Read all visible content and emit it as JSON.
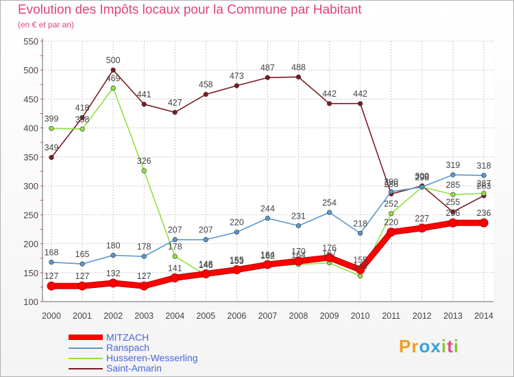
{
  "chart_data": {
    "type": "line",
    "title": "Evolution des Impôts locaux pour la Commune par Habitant",
    "subtitle": "(en € et par an)",
    "categories": [
      "2000",
      "2001",
      "2002",
      "2003",
      "2004",
      "2005",
      "2006",
      "2007",
      "2008",
      "2009",
      "2010",
      "2011",
      "2012",
      "2013",
      "2014"
    ],
    "ylim": [
      100,
      550
    ],
    "yticks": [
      100,
      150,
      200,
      250,
      300,
      350,
      400,
      450,
      500,
      550
    ],
    "grid": true,
    "legend_position": "bottom-left",
    "series": [
      {
        "name": "MITZACH",
        "color": "#ff0000",
        "values": [
          127,
          127,
          132,
          127,
          141,
          148,
          155,
          164,
          170,
          176,
          155,
          220,
          227,
          236,
          236
        ],
        "labels": [
          "127",
          "127",
          "132",
          "127",
          "141",
          "148",
          "155",
          "164",
          "170",
          "176",
          "155",
          "220",
          "227",
          "236",
          "236"
        ]
      },
      {
        "name": "Ranspach",
        "color": "#5a96cc",
        "values": [
          168,
          165,
          180,
          178,
          207,
          207,
          220,
          244,
          231,
          254,
          218,
          290,
          298,
          319,
          318
        ],
        "labels": [
          "168",
          "165",
          "180",
          "178",
          "207",
          "207",
          "220",
          "244",
          "231",
          "254",
          "218",
          "290",
          "298",
          "319",
          "318"
        ]
      },
      {
        "name": "Husseren-Wesserling",
        "color": "#90e040",
        "values": [
          399,
          398,
          469,
          326,
          178,
          146,
          153,
          162,
          164,
          167,
          144,
          252,
          298,
          285,
          287
        ],
        "labels": [
          "399",
          "398",
          "469",
          "326",
          "178",
          "146",
          "153",
          "162",
          "164",
          "167",
          "144",
          "252",
          "298",
          "285",
          "287"
        ]
      },
      {
        "name": "Saint-Amarin",
        "color": "#7a1a22",
        "values": [
          349,
          418,
          500,
          441,
          427,
          458,
          473,
          487,
          488,
          442,
          442,
          286,
          300,
          255,
          283
        ],
        "labels": [
          "349",
          "418",
          "500",
          "441",
          "427",
          "458",
          "473",
          "487",
          "488",
          "442",
          "442",
          "286",
          "300",
          "255",
          "283"
        ]
      }
    ]
  },
  "logo": {
    "letters": [
      "P",
      "r",
      "o",
      "x",
      "i",
      "t",
      "i"
    ],
    "colors": [
      "#f39c1c",
      "#f39c1c",
      "#3aa0d8",
      "#3aa0d8",
      "#8ac43e",
      "#e84a8a",
      "#8ac43e"
    ]
  }
}
